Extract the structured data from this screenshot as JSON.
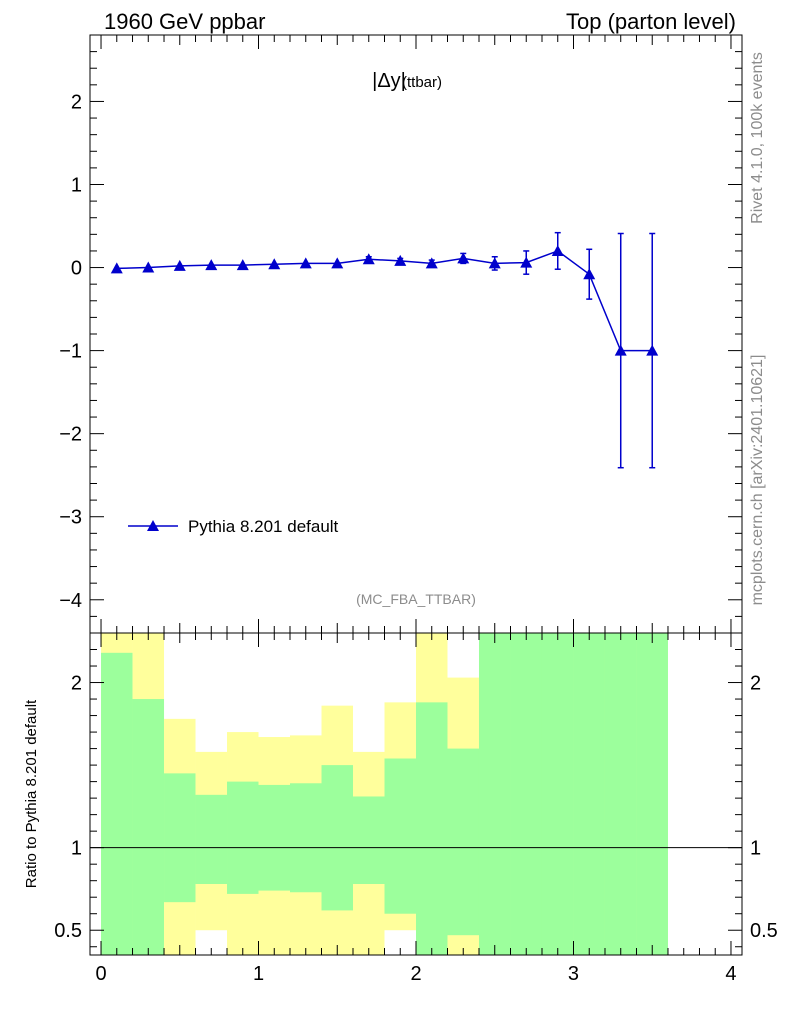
{
  "header": {
    "left": "1960 GeV ppbar",
    "right": "Top (parton level)"
  },
  "side": {
    "rivet": "Rivet 4.1.0,  100k events",
    "mcplots": "mcplots.cern.ch [arXiv:2401.10621]"
  },
  "colors": {
    "series": "#0000cc",
    "band_inner": "#9cff9c",
    "band_outer": "#ffff9c",
    "axis": "#000000",
    "muted": "#8c8c8c"
  },
  "chart_data": [
    {
      "type": "line",
      "title_main": "|Δy|",
      "title_sub": "(ttbar)",
      "analysis_label": "(MC_FBA_TTBAR)",
      "xlim": [
        -0.07,
        4.07
      ],
      "ylim": [
        -4.4,
        2.8
      ],
      "yticks": [
        -4,
        -3,
        -2,
        -1,
        0,
        1,
        2
      ],
      "ytick_labels": [
        "−4",
        "−3",
        "−2",
        "−1",
        "0",
        "1",
        "2"
      ],
      "legend": {
        "label": "Pythia 8.201 default",
        "position": "bottom-left"
      },
      "series": [
        {
          "name": "Pythia 8.201 default",
          "x": [
            0.1,
            0.3,
            0.5,
            0.7,
            0.9,
            1.1,
            1.3,
            1.5,
            1.7,
            1.9,
            2.1,
            2.3,
            2.5,
            2.7,
            2.9,
            3.1,
            3.3,
            3.5
          ],
          "y": [
            -0.01,
            0.0,
            0.02,
            0.03,
            0.03,
            0.04,
            0.05,
            0.05,
            0.1,
            0.08,
            0.05,
            0.11,
            0.05,
            0.06,
            0.2,
            -0.08,
            -1.0,
            -1.0
          ],
          "yerr": [
            0.02,
            0.02,
            0.02,
            0.02,
            0.02,
            0.02,
            0.02,
            0.02,
            0.03,
            0.03,
            0.04,
            0.06,
            0.08,
            0.14,
            0.22,
            0.3,
            1.41,
            1.41
          ]
        }
      ]
    },
    {
      "type": "area",
      "ylabel": "Ratio to Pythia 8.201 default",
      "xlabel": "",
      "xlim": [
        -0.07,
        4.07
      ],
      "ylim": [
        0.35,
        2.3
      ],
      "xticks": [
        0,
        1,
        2,
        3,
        4
      ],
      "xtick_labels": [
        "0",
        "1",
        "2",
        "3",
        "4"
      ],
      "yticks": [
        0.5,
        1,
        2
      ],
      "ytick_labels": [
        "0.5",
        "1",
        "2"
      ],
      "reference_line": 1,
      "bin_edges": [
        0.0,
        0.2,
        0.4,
        0.6,
        0.8,
        1.0,
        1.2,
        1.4,
        1.6,
        1.8,
        2.0,
        2.2,
        2.4,
        2.6,
        2.8,
        3.0,
        3.2,
        3.4,
        3.6
      ],
      "inner_band": {
        "low": [
          0.35,
          0.35,
          0.35,
          0.35,
          0.35,
          0.35,
          0.35,
          0.35,
          0.35,
          0.35,
          0.35,
          0.35,
          0.35,
          0.35,
          0.35,
          0.35,
          0.35,
          0.35
        ],
        "high": [
          2.18,
          1.9,
          1.45,
          1.32,
          1.4,
          1.38,
          1.39,
          1.5,
          1.31,
          1.54,
          1.88,
          1.6,
          2.3,
          2.3,
          2.3,
          2.3,
          2.3,
          2.3
        ]
      },
      "outer_band": {
        "low": [
          0.35,
          0.35,
          0.35,
          0.5,
          0.35,
          0.35,
          0.35,
          0.35,
          0.35,
          0.5,
          0.35,
          0.35,
          0.35,
          0.35,
          0.35,
          0.35,
          0.35,
          0.35
        ],
        "high": [
          2.3,
          2.3,
          1.78,
          1.58,
          1.7,
          1.67,
          1.68,
          1.86,
          1.58,
          1.88,
          2.3,
          2.03,
          2.3,
          2.3,
          2.3,
          2.3,
          2.3,
          2.3
        ]
      },
      "inner_cut": [
        null,
        null,
        0.67,
        0.78,
        0.72,
        0.74,
        0.73,
        0.62,
        0.78,
        0.6,
        0.35,
        0.35,
        null,
        null,
        null,
        null,
        null,
        null
      ],
      "outer_cut": [
        null,
        null,
        null,
        null,
        null,
        null,
        null,
        null,
        null,
        null,
        null,
        0.47,
        null,
        null,
        null,
        null,
        null,
        null
      ]
    }
  ]
}
